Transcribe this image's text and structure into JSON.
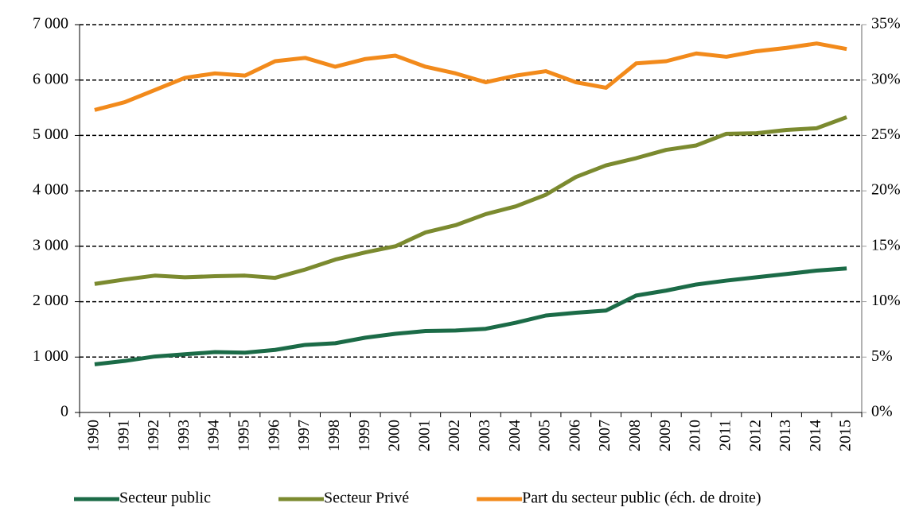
{
  "chart_data": {
    "type": "line",
    "categories": [
      "1990",
      "1991",
      "1992",
      "1993",
      "1994",
      "1995",
      "1996",
      "1997",
      "1998",
      "1999",
      "2000",
      "2001",
      "2002",
      "2003",
      "2004",
      "2005",
      "2006",
      "2007",
      "2008",
      "2009",
      "2010",
      "2011",
      "2012",
      "2013",
      "2014",
      "2015"
    ],
    "series": [
      {
        "name": "Secteur public",
        "color": "#1b6b47",
        "values": [
          870,
          930,
          1010,
          1050,
          1090,
          1080,
          1130,
          1220,
          1250,
          1350,
          1420,
          1470,
          1480,
          1510,
          1620,
          1750,
          1800,
          1840,
          2110,
          2200,
          2310,
          2380,
          2440,
          2500,
          2560,
          2600
        ]
      },
      {
        "name": "Secteur Privé",
        "color": "#7b8a2f",
        "values": [
          2320,
          2400,
          2470,
          2440,
          2460,
          2470,
          2430,
          2580,
          2760,
          2890,
          3000,
          3250,
          3380,
          3580,
          3720,
          3930,
          4250,
          4460,
          4590,
          4740,
          4820,
          5030,
          5040,
          5100,
          5130,
          5330
        ]
      },
      {
        "name": "Part du secteur public (éch. de droite)",
        "color": "#f28a1b",
        "axis": "y2",
        "values": [
          27.3,
          28.0,
          29.1,
          30.2,
          30.6,
          30.4,
          31.7,
          32.0,
          31.2,
          31.9,
          32.2,
          31.2,
          30.6,
          29.8,
          30.4,
          30.8,
          29.8,
          29.3,
          31.5,
          31.7,
          32.4,
          32.1,
          32.6,
          32.9,
          33.3,
          32.8
        ]
      }
    ],
    "ylim": [
      0,
      7000
    ],
    "yticks": [
      0,
      {
        "value": 1000,
        "label": "1 000"
      },
      {
        "value": 2000,
        "label": "2 000"
      },
      {
        "value": 3000,
        "label": "3 000"
      },
      {
        "value": 4000,
        "label": "4 000"
      },
      {
        "value": 5000,
        "label": "5 000"
      },
      {
        "value": 6000,
        "label": "6 000"
      },
      {
        "value": 7000,
        "label": "7 000"
      }
    ],
    "y2lim": [
      0,
      35
    ],
    "y2ticks": [
      {
        "value": 0,
        "label": "0%"
      },
      {
        "value": 5,
        "label": "5%"
      },
      {
        "value": 10,
        "label": "10%"
      },
      {
        "value": 15,
        "label": "15%"
      },
      {
        "value": 20,
        "label": "20%"
      },
      {
        "value": 25,
        "label": "25%"
      },
      {
        "value": 30,
        "label": "30%"
      },
      {
        "value": 35,
        "label": "35%"
      }
    ],
    "grid": true,
    "legend": "bottom"
  }
}
